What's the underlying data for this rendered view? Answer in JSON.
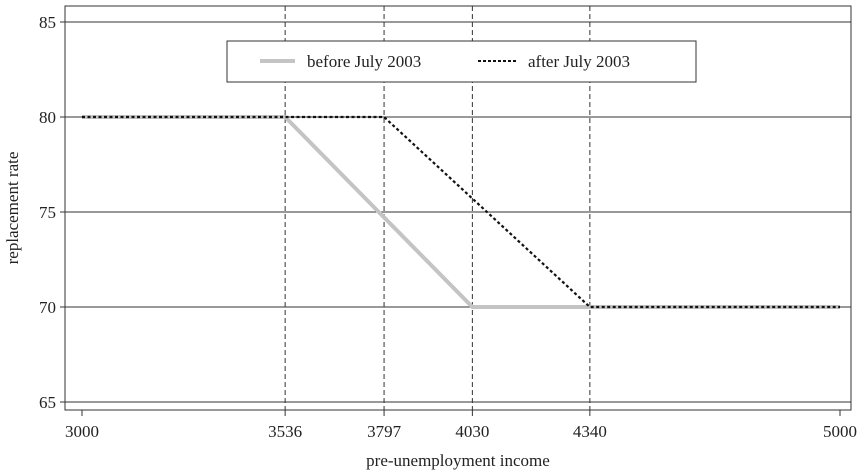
{
  "chart_data": {
    "type": "line",
    "title": "",
    "xlabel": "pre-unemployment income",
    "ylabel": "replacement rate",
    "xlim": [
      3000,
      5000
    ],
    "ylim": [
      65,
      85
    ],
    "xticks": [
      3000,
      3536,
      3797,
      4030,
      4340,
      5000
    ],
    "yticks": [
      65,
      70,
      75,
      80,
      85
    ],
    "grid": {
      "horizontal": true,
      "vertical_dashed_at": [
        3536,
        3797,
        4030,
        4340
      ]
    },
    "legend": {
      "placement": "top-center",
      "boxed": true
    },
    "series": [
      {
        "name": "before July 2003",
        "style": "solid",
        "color": "#c4c4c4",
        "x": [
          3000,
          3536,
          4030,
          5000
        ],
        "y": [
          80,
          80,
          70,
          70
        ]
      },
      {
        "name": "after July 2003",
        "style": "dotted",
        "color": "#111111",
        "x": [
          3000,
          3797,
          4340,
          5000
        ],
        "y": [
          80,
          80,
          70,
          70
        ]
      }
    ]
  }
}
